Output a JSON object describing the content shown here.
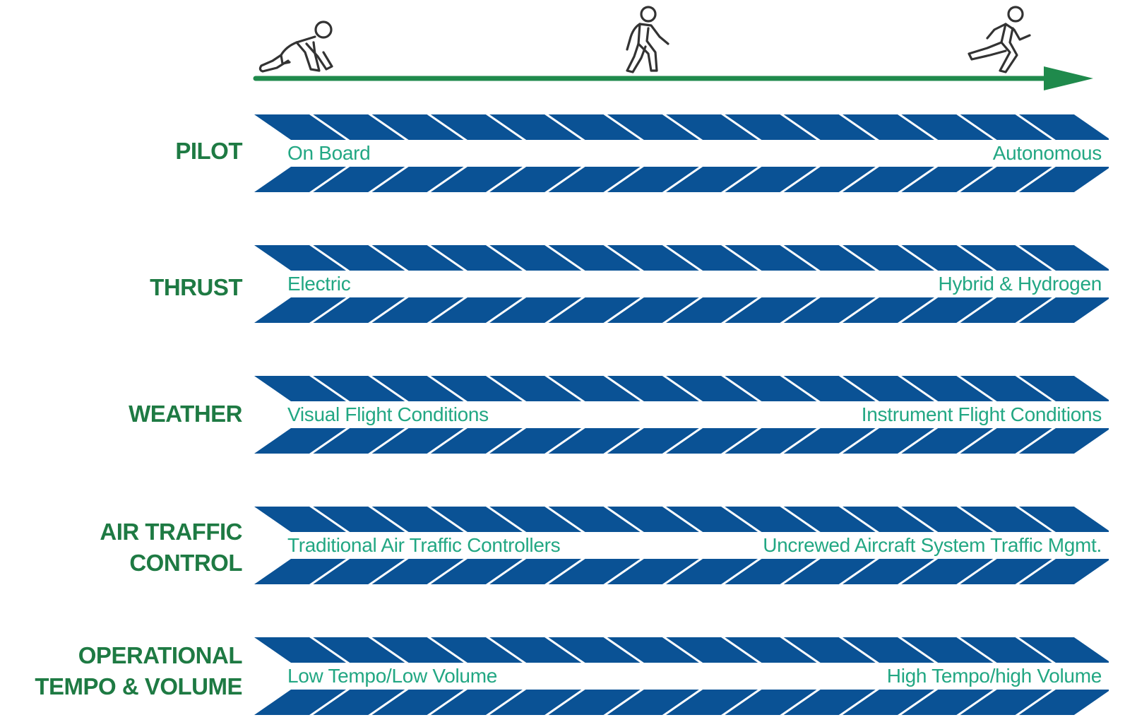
{
  "colors": {
    "label_green": "#1e7a43",
    "text_teal": "#22a783",
    "stripe_blue": "#0a5295",
    "arrow_green": "#1f8a4c",
    "icon_stroke": "#333333"
  },
  "header": {
    "icons": [
      "crawling-person-icon",
      "walking-person-icon",
      "running-person-icon"
    ]
  },
  "rows": [
    {
      "label_lines": [
        "PILOT"
      ],
      "left": "On Board",
      "right": "Autonomous"
    },
    {
      "label_lines": [
        "THRUST"
      ],
      "left": "Electric",
      "right": "Hybrid & Hydrogen"
    },
    {
      "label_lines": [
        "WEATHER"
      ],
      "left": "Visual Flight Conditions",
      "right": "Instrument Flight Conditions"
    },
    {
      "label_lines": [
        "AIR TRAFFIC",
        "CONTROL"
      ],
      "left": "Traditional Air Traffic Controllers",
      "right": "Uncrewed Aircraft System Traffic Mgmt."
    },
    {
      "label_lines": [
        "OPERATIONAL",
        "TEMPO & VOLUME"
      ],
      "left": "Low Tempo/Low Volume",
      "right": "High Tempo/high Volume"
    }
  ]
}
